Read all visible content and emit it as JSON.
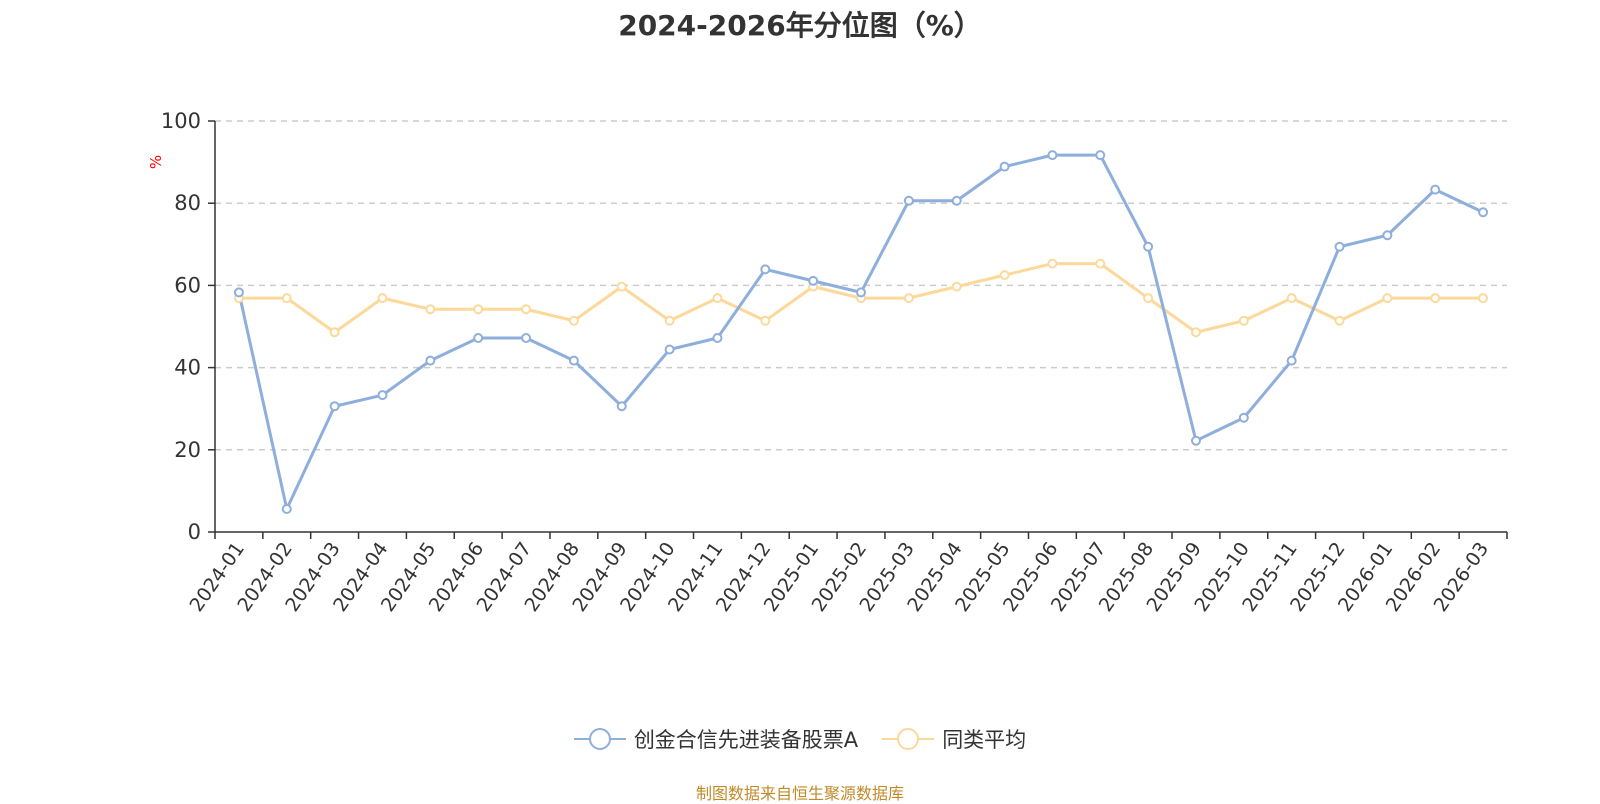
{
  "chart_data": {
    "type": "line",
    "title": "2024-2026年分位图（%）",
    "ylabel": "%",
    "xlabel": "",
    "ylim": [
      0,
      100
    ],
    "yticks": [
      0,
      20,
      40,
      60,
      80,
      100
    ],
    "grid": true,
    "legend_position": "bottom-center",
    "categories": [
      "2024-01",
      "2024-02",
      "2024-03",
      "2024-04",
      "2024-05",
      "2024-06",
      "2024-07",
      "2024-08",
      "2024-09",
      "2024-10",
      "2024-11",
      "2024-12",
      "2025-01",
      "2025-02",
      "2025-03",
      "2025-04",
      "2025-05",
      "2025-06",
      "2025-07",
      "2025-08",
      "2025-09",
      "2025-10",
      "2025-11",
      "2025-12",
      "2026-01",
      "2026-02",
      "2026-03"
    ],
    "series": [
      {
        "name": "创金合信先进装备股票A",
        "color": "#8eaedc",
        "values": [
          58.3,
          5.6,
          30.6,
          33.3,
          41.7,
          47.2,
          47.2,
          41.7,
          30.6,
          44.4,
          47.2,
          63.9,
          61.1,
          58.3,
          80.6,
          80.6,
          88.9,
          91.7,
          91.7,
          69.4,
          22.2,
          27.8,
          41.7,
          69.4,
          72.2,
          83.3,
          77.8
        ]
      },
      {
        "name": "同类平均",
        "color": "#fcd99a",
        "values": [
          56.9,
          56.9,
          48.6,
          56.9,
          54.2,
          54.2,
          54.2,
          51.4,
          59.7,
          51.4,
          56.9,
          51.4,
          59.7,
          56.9,
          56.9,
          59.7,
          62.5,
          65.3,
          65.3,
          56.9,
          48.6,
          51.4,
          56.9,
          51.4,
          56.9,
          56.9,
          56.9
        ]
      }
    ]
  },
  "source": "制图数据来自恒生聚源数据库",
  "colors": {
    "axis": "#333333",
    "grid": "#cccccc",
    "ylabel": "#ff0000",
    "source": "#c08a2a"
  }
}
